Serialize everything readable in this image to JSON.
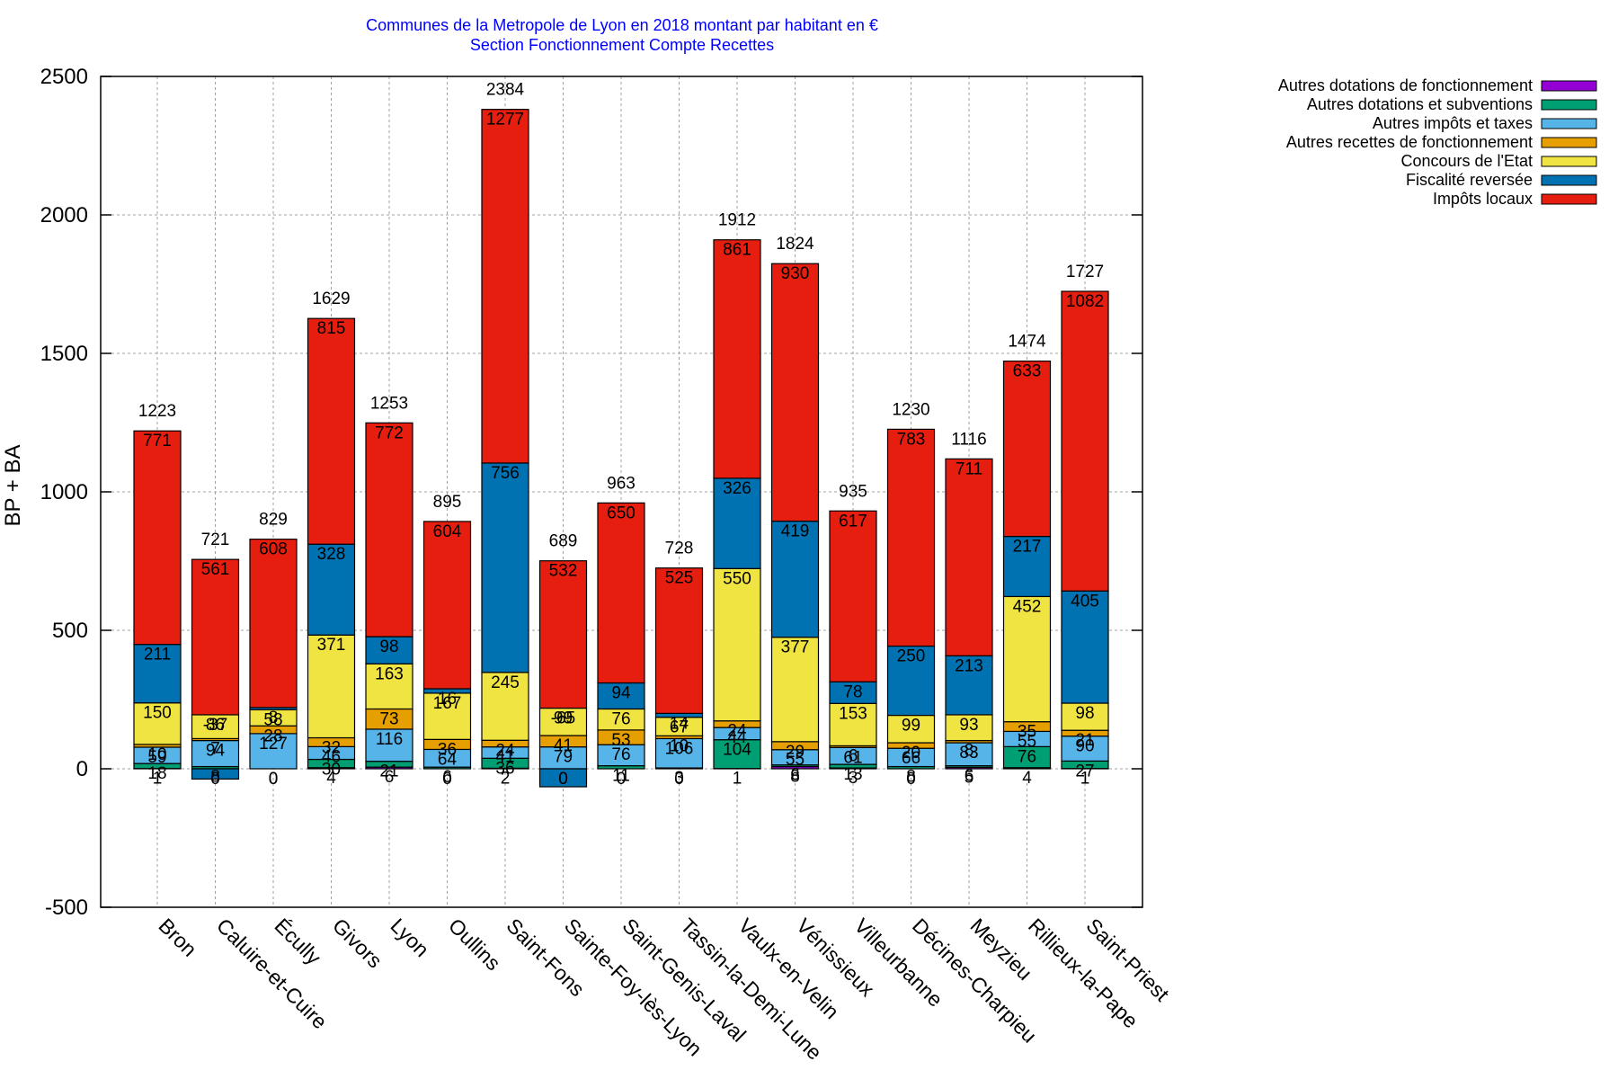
{
  "chart_data": {
    "type": "bar",
    "stacked": true,
    "title": "Communes de la Metropole de Lyon en 2018 montant par habitant en €",
    "subtitle": "Section Fonctionnement Compte Recettes",
    "xlabel": "",
    "ylabel": "BP + BA",
    "ylim": [
      -500,
      2500
    ],
    "yticks": [
      -500,
      0,
      500,
      1000,
      1500,
      2000,
      2500
    ],
    "grid": true,
    "legend_position": "top-right-outside",
    "categories": [
      "Bron",
      "Caluire-et-Cuire",
      "Écully",
      "Givors",
      "Lyon",
      "Oullins",
      "Saint-Fons",
      "Sainte-Foy-lès-Lyon",
      "Saint-Genis-Laval",
      "Tassin-la-Demi-Lune",
      "Vaulx-en-Velin",
      "Vénissieux",
      "Villeurbanne",
      "Décines-Charpieu",
      "Meyzieu",
      "Rillieux-la-Pape",
      "Saint-Priest"
    ],
    "totals": [
      1223,
      721,
      829,
      1629,
      1253,
      895,
      2384,
      689,
      963,
      728,
      1912,
      1824,
      935,
      1230,
      1116,
      1474,
      1727
    ],
    "series": [
      {
        "name": "Autres dotations de fonctionnement",
        "color": "#9400d3",
        "values": [
          1,
          0,
          0,
          4,
          6,
          0,
          2,
          0,
          0,
          0,
          1,
          8,
          3,
          0,
          5,
          4,
          1
        ]
      },
      {
        "name": "Autres dotations et subventions",
        "color": "#009e73",
        "values": [
          18,
          8,
          0,
          30,
          21,
          6,
          36,
          0,
          11,
          3,
          104,
          6,
          13,
          8,
          6,
          76,
          27
        ]
      },
      {
        "name": "Autres impôts et taxes",
        "color": "#56b4e9",
        "values": [
          59,
          94,
          127,
          46,
          116,
          64,
          41,
          79,
          76,
          106,
          44,
          55,
          61,
          66,
          83,
          55,
          90
        ]
      },
      {
        "name": "Autres recettes de fonctionnement",
        "color": "#e69f00",
        "values": [
          10,
          7,
          28,
          32,
          73,
          36,
          24,
          41,
          53,
          10,
          24,
          29,
          6,
          20,
          8,
          35,
          21
        ]
      },
      {
        "name": "Concours de l'Etat",
        "color": "#f0e442",
        "values": [
          150,
          86,
          58,
          371,
          163,
          167,
          245,
          99,
          76,
          67,
          550,
          377,
          153,
          99,
          93,
          452,
          98
        ]
      },
      {
        "name": "Fiscalité reversée",
        "color": "#0072b2",
        "values": [
          211,
          -37,
          8,
          328,
          98,
          16,
          756,
          -65,
          94,
          14,
          326,
          419,
          78,
          250,
          213,
          217,
          405
        ]
      },
      {
        "name": "Impôts locaux",
        "color": "#e51e10",
        "values": [
          771,
          561,
          608,
          815,
          772,
          604,
          1277,
          532,
          650,
          525,
          861,
          930,
          617,
          783,
          711,
          633,
          1082
        ]
      }
    ]
  }
}
